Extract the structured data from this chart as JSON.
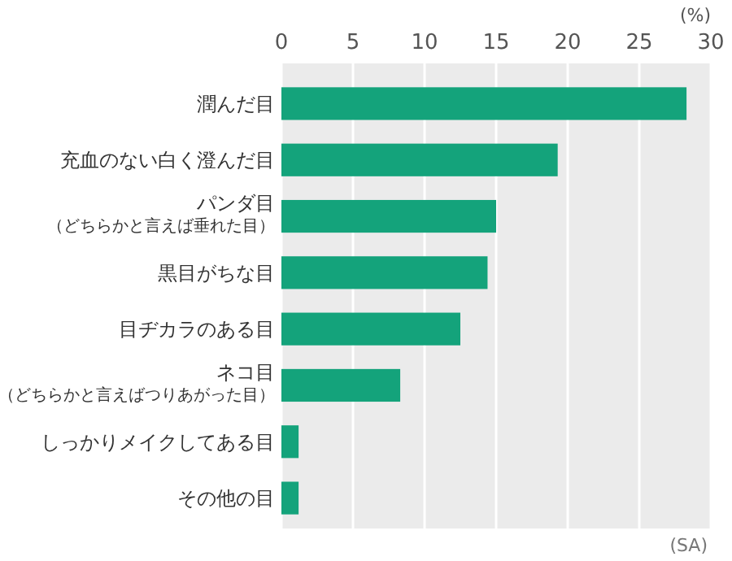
{
  "chart_data": {
    "type": "bar",
    "orientation": "horizontal",
    "categories": [
      "潤んだ目",
      "充血のない白く澄んだ目",
      "パンダ目（どちらかと言えば垂れた目）",
      "黒目がちな目",
      "目ヂカラのある目",
      "ネコ目（どちらかと言えばつりあがった目）",
      "しっかりメイクしてある目",
      "その他の目"
    ],
    "values": [
      28.3,
      19.3,
      15.0,
      14.4,
      12.5,
      8.3,
      1.2,
      1.2
    ],
    "color": "#14a37b",
    "xlim": [
      0,
      30
    ],
    "xticks": [
      0,
      5,
      10,
      15,
      20,
      25,
      30
    ],
    "grid": "x",
    "xlabel": "(%)",
    "annotations": [
      "(SA)"
    ]
  }
}
